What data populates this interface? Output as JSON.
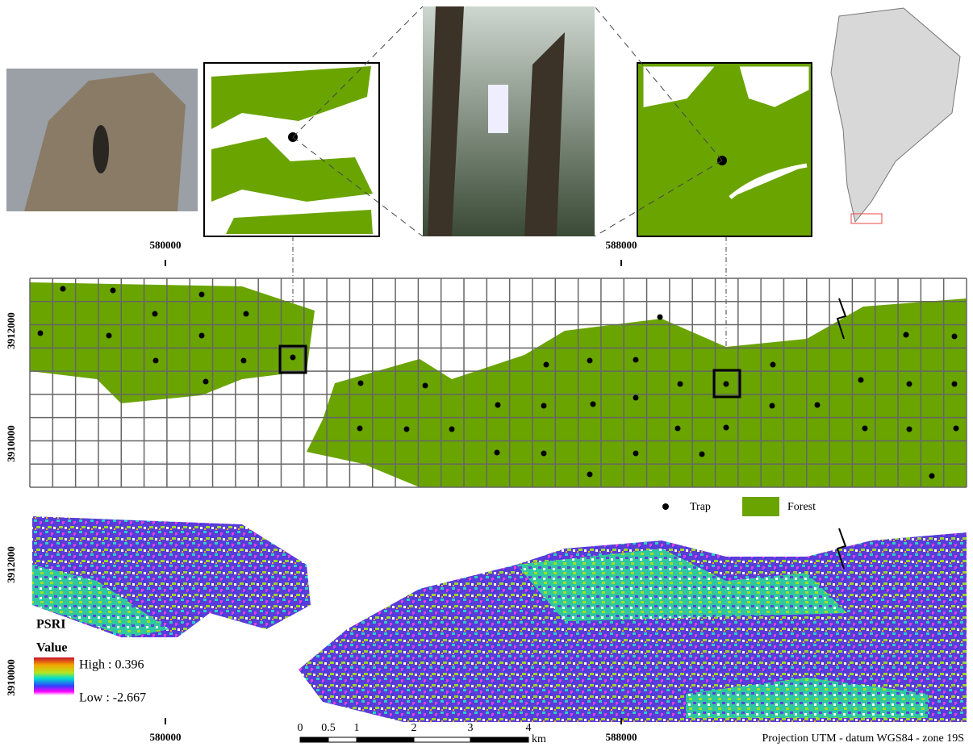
{
  "top_map": {
    "x_labels": [
      "580000",
      "588000"
    ],
    "y_labels": [
      "3912000",
      "3910000"
    ],
    "legend": {
      "trap": "Trap",
      "forest": "Forest"
    }
  },
  "bottom_map": {
    "y_labels": [
      "3912000",
      "3910000"
    ],
    "x_labels": [
      "580000",
      "588000"
    ],
    "legend": {
      "title": "PSRI",
      "subtitle": "Value",
      "high": "High : 0.396",
      "low": "Low : -2.667"
    }
  },
  "scale_bar": {
    "labels": [
      "0",
      "0.5",
      "1",
      "2",
      "3",
      "4"
    ],
    "unit": "km"
  },
  "projection": "Projection UTM - datum WGS84 - zone 19S"
}
